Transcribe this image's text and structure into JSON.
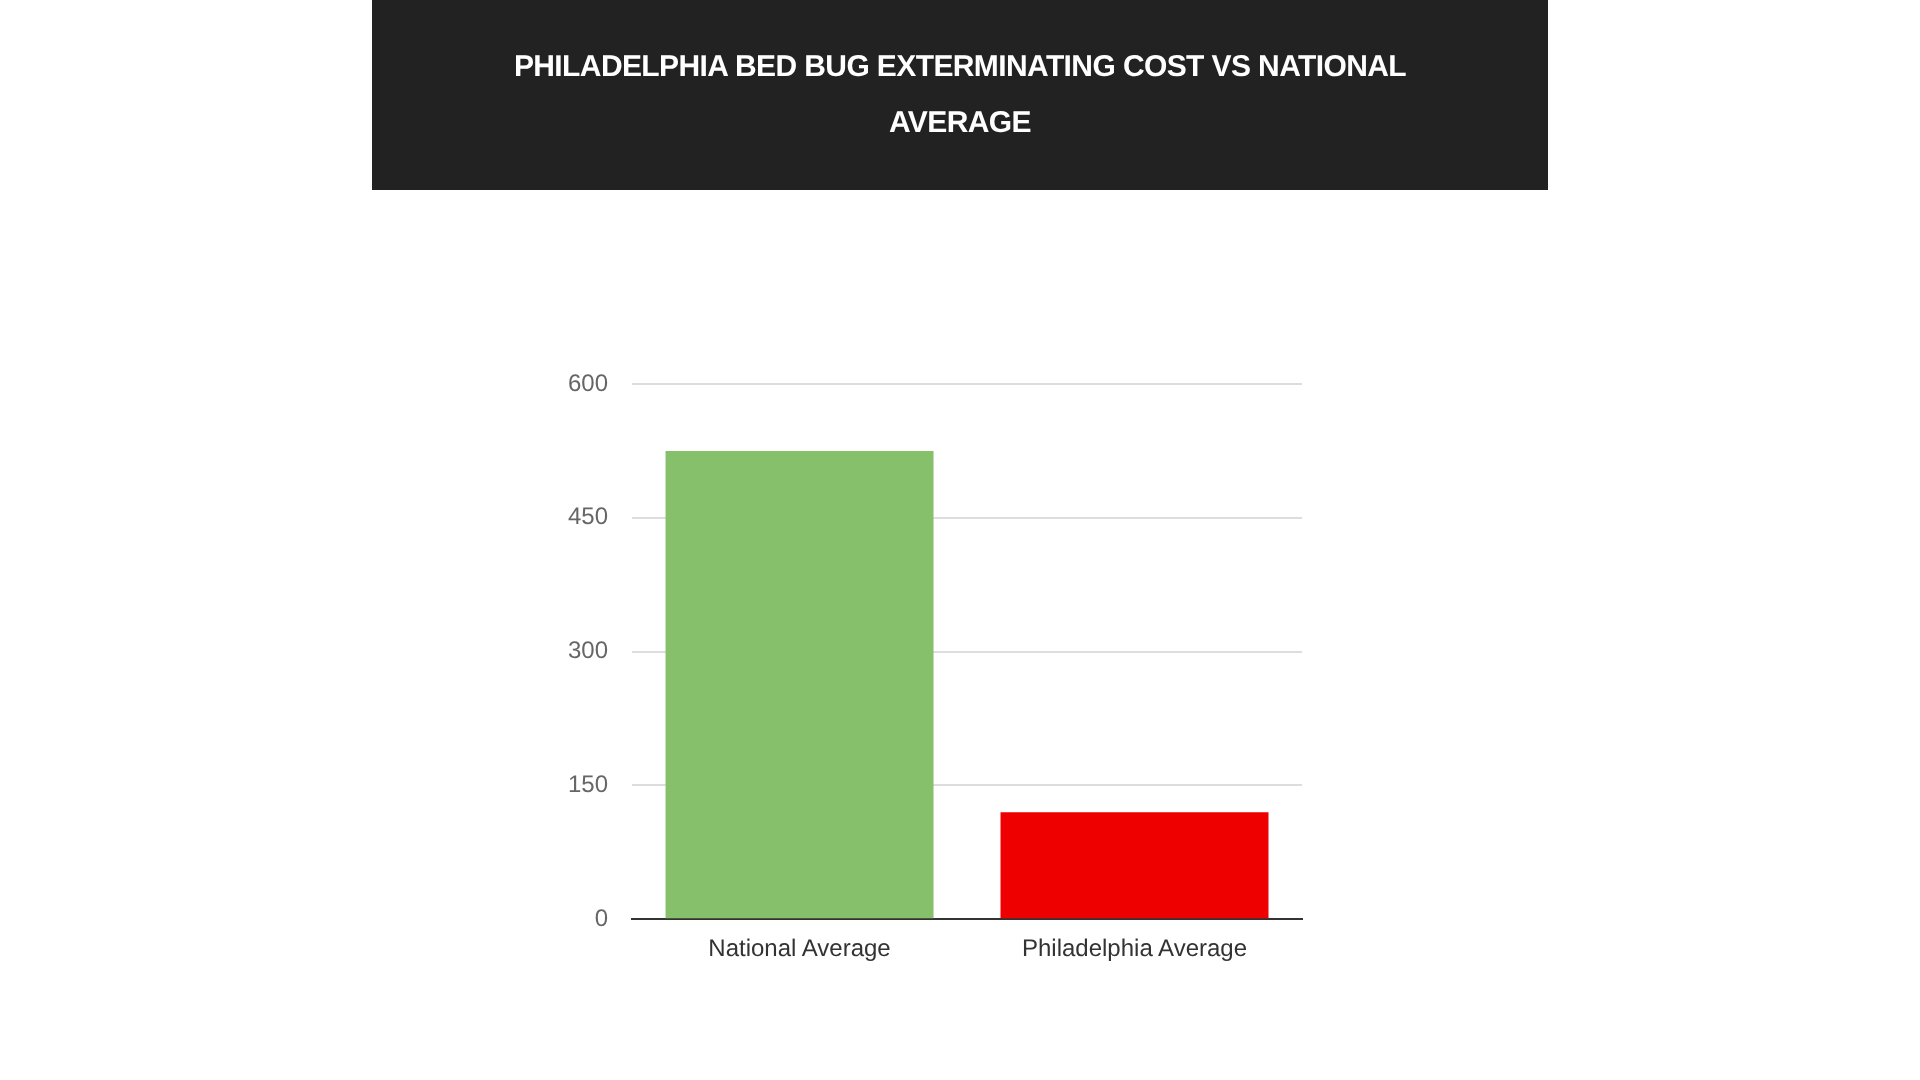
{
  "chart_data": {
    "type": "bar",
    "title": "PHILADELPHIA BED BUG EXTERMINATING COST VS NATIONAL AVERAGE",
    "categories": [
      "National Average",
      "Philadelphia Average"
    ],
    "values": [
      525,
      120
    ],
    "colors": [
      "#86c06a",
      "#ee0000"
    ],
    "ylim": [
      0,
      600
    ],
    "yticks": [
      0,
      150,
      300,
      450,
      600
    ],
    "grid": "y",
    "legend": false
  }
}
